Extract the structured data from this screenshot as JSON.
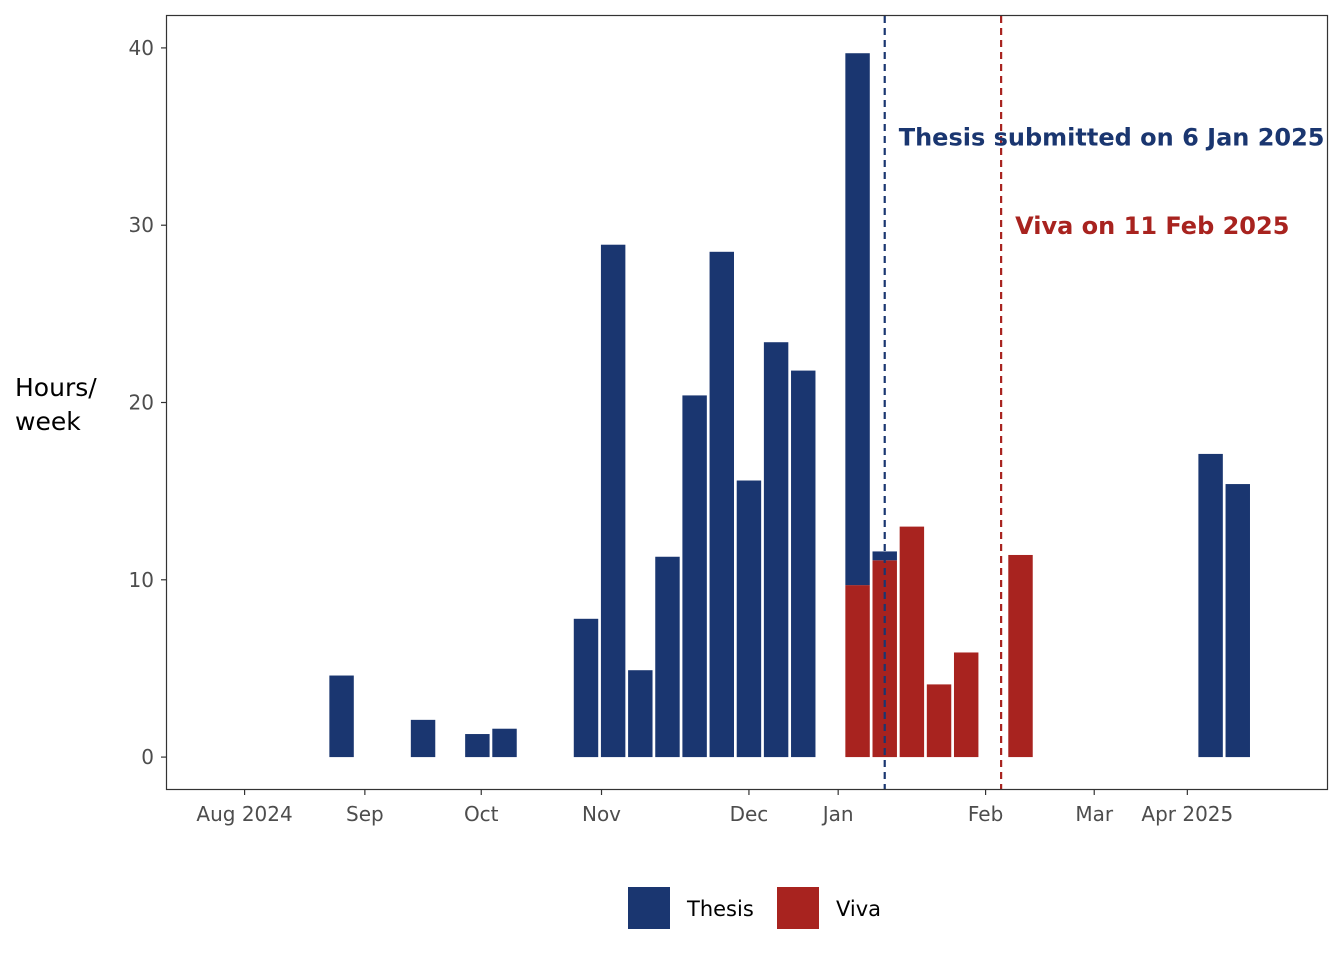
{
  "chart_data": {
    "type": "bar",
    "stacked": true,
    "xlabel": "",
    "ylabel_lines": [
      "Hours/",
      "week"
    ],
    "ylim": [
      -1.8,
      41.8
    ],
    "yticks": [
      0,
      10,
      20,
      30,
      40
    ],
    "x_range": [
      "2024-07-12",
      "2025-05-07"
    ],
    "xticks": [
      {
        "date": "2024-08-01",
        "label": "Aug 2024"
      },
      {
        "date": "2024-09-01",
        "label": "Sep"
      },
      {
        "date": "2024-10-01",
        "label": "Oct"
      },
      {
        "date": "2024-11-01",
        "label": "Nov"
      },
      {
        "date": "2024-12-09",
        "label": "Dec"
      },
      {
        "date": "2025-01-01",
        "label": "Jan"
      },
      {
        "date": "2025-02-08",
        "label": "Feb"
      },
      {
        "date": "2025-03-08",
        "label": "Mar"
      },
      {
        "date": "2025-04-01",
        "label": "Apr 2025"
      }
    ],
    "grid": false,
    "legend_position": "bottom",
    "series": [
      {
        "name": "Thesis",
        "color": "#1a3670",
        "points": [
          {
            "date": "2024-08-26",
            "value": 4.6
          },
          {
            "date": "2024-09-16",
            "value": 2.1
          },
          {
            "date": "2024-09-30",
            "value": 1.3
          },
          {
            "date": "2024-10-07",
            "value": 1.6
          },
          {
            "date": "2024-10-28",
            "value": 7.8
          },
          {
            "date": "2024-11-04",
            "value": 28.9
          },
          {
            "date": "2024-11-11",
            "value": 4.9
          },
          {
            "date": "2024-11-18",
            "value": 11.3
          },
          {
            "date": "2024-11-25",
            "value": 20.4
          },
          {
            "date": "2024-12-02",
            "value": 28.5
          },
          {
            "date": "2024-12-09",
            "value": 15.6
          },
          {
            "date": "2024-12-16",
            "value": 23.4
          },
          {
            "date": "2024-12-23",
            "value": 21.8
          },
          {
            "date": "2025-01-06",
            "value": 30.0
          },
          {
            "date": "2025-01-13",
            "value": 0.5
          },
          {
            "date": "2025-04-07",
            "value": 17.1
          },
          {
            "date": "2025-04-14",
            "value": 15.4
          }
        ]
      },
      {
        "name": "Viva",
        "color": "#a8231f",
        "points": [
          {
            "date": "2025-01-06",
            "value": 9.7
          },
          {
            "date": "2025-01-13",
            "value": 11.1
          },
          {
            "date": "2025-01-20",
            "value": 13.0
          },
          {
            "date": "2025-01-27",
            "value": 4.1
          },
          {
            "date": "2025-02-03",
            "value": 5.9
          },
          {
            "date": "2025-02-17",
            "value": 11.4
          }
        ]
      }
    ],
    "bar_width_days": 6.3,
    "vlines": [
      {
        "date": "2025-01-13",
        "label": "Thesis submitted on 6 Jan 2025",
        "label_y": 35,
        "color": "#1a3670"
      },
      {
        "date": "2025-02-12",
        "label": "Viva on 11 Feb 2025",
        "label_y": 30,
        "color": "#a8231f"
      }
    ]
  }
}
